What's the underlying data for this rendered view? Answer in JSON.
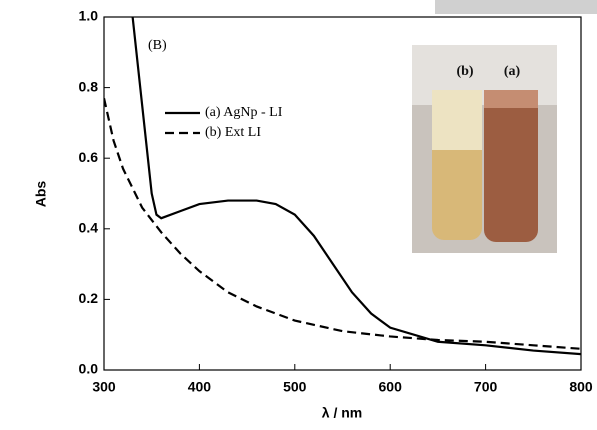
{
  "chart_data": {
    "type": "line",
    "xlabel": "λ / nm",
    "ylabel": "Abs",
    "annotation": "(B)",
    "inset_labels": [
      "(b)",
      "(a)"
    ],
    "xlim": [
      300,
      800
    ],
    "xticks": [
      300,
      400,
      500,
      600,
      700,
      800
    ],
    "ylim": [
      0,
      1
    ],
    "yticks": [
      {
        "value": 0,
        "label": "0.0"
      },
      0.2,
      0.4,
      0.6,
      0.8,
      {
        "value": 1,
        "label": "1.0"
      }
    ],
    "series": [
      {
        "name": "(a) AgNp - LI",
        "color": "#000000",
        "dash": "solid",
        "x": [
          330,
          340,
          350,
          355,
          360,
          380,
          400,
          430,
          460,
          480,
          500,
          520,
          540,
          560,
          580,
          600,
          650,
          700,
          750,
          800
        ],
        "values": [
          1.0,
          0.75,
          0.5,
          0.44,
          0.43,
          0.45,
          0.47,
          0.48,
          0.48,
          0.47,
          0.44,
          0.38,
          0.3,
          0.22,
          0.16,
          0.12,
          0.08,
          0.07,
          0.055,
          0.045
        ]
      },
      {
        "name": "(b) Ext LI",
        "color": "#000000",
        "dash": "dashed",
        "x": [
          300,
          310,
          320,
          340,
          360,
          380,
          400,
          430,
          460,
          500,
          550,
          600,
          650,
          700,
          750,
          800
        ],
        "values": [
          0.77,
          0.65,
          0.57,
          0.46,
          0.39,
          0.33,
          0.28,
          0.22,
          0.18,
          0.14,
          0.11,
          0.095,
          0.085,
          0.08,
          0.07,
          0.06
        ]
      }
    ]
  }
}
